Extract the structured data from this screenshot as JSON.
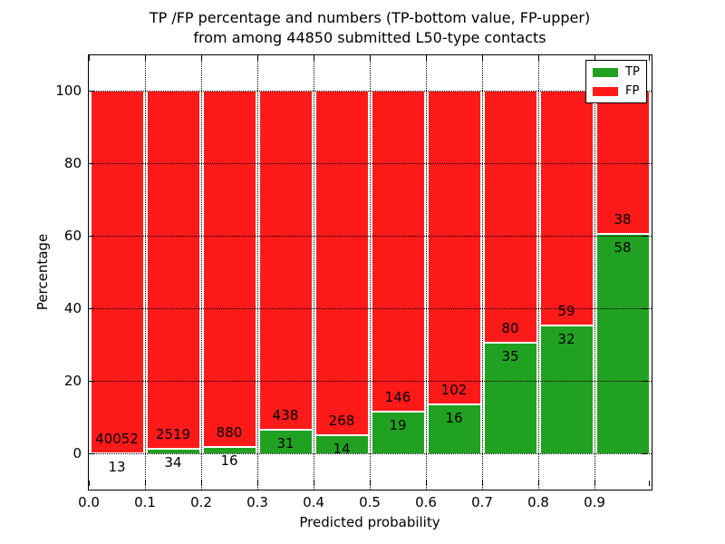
{
  "title": {
    "line1": "TP /FP percentage and numbers (TP-bottom value, FP-upper)",
    "line2": "from among 44850 submitted L50-type contacts"
  },
  "axes": {
    "xlabel": "Predicted probability",
    "ylabel": "Percentage",
    "x_tick_labels": [
      "0.0",
      "0.1",
      "0.2",
      "0.3",
      "0.4",
      "0.5",
      "0.6",
      "0.7",
      "0.8",
      "0.9"
    ],
    "y_tick_labels": [
      "0",
      "20",
      "40",
      "60",
      "80",
      "100"
    ],
    "y_tick_values": [
      0,
      20,
      40,
      60,
      80,
      100
    ]
  },
  "legend": {
    "items": [
      {
        "label": "TP",
        "color": "#21a121"
      },
      {
        "label": "FP",
        "color": "#ff1a1a"
      }
    ]
  },
  "colors": {
    "tp_green": "#21a121",
    "fp_red": "#ff1a1a",
    "grid": "#000000",
    "bar_edge": "#ffffff"
  },
  "chart_data": {
    "type": "bar",
    "stacked": true,
    "title": "TP /FP percentage and numbers (TP-bottom value, FP-upper) from among 44850 submitted L50-type contacts",
    "xlabel": "Predicted probability",
    "ylabel": "Percentage",
    "bin_start": [
      0.0,
      0.1,
      0.2,
      0.3,
      0.4,
      0.5,
      0.6,
      0.7,
      0.8,
      0.9
    ],
    "bin_width": 0.1,
    "series": [
      {
        "name": "TP",
        "color": "#21a121",
        "counts": [
          13,
          34,
          16,
          31,
          14,
          19,
          16,
          35,
          32,
          58
        ]
      },
      {
        "name": "FP",
        "color": "#ff1a1a",
        "counts": [
          40052,
          2519,
          880,
          438,
          268,
          146,
          102,
          80,
          59,
          38
        ]
      }
    ],
    "tp_percent_of_bin": [
      0.03,
      1.33,
      1.79,
      6.61,
      4.96,
      11.52,
      13.56,
      30.43,
      35.16,
      60.42
    ],
    "total_submitted": 44850,
    "xlim": [
      0.0,
      1.0
    ],
    "ylim": [
      -10,
      110
    ],
    "grid": "dotted, drawn above bars",
    "legend_position": "upper right",
    "note": "Each bar: green bottom = TP% of bin, red top = FP% of bin; FP count printed above boundary, TP count below"
  }
}
